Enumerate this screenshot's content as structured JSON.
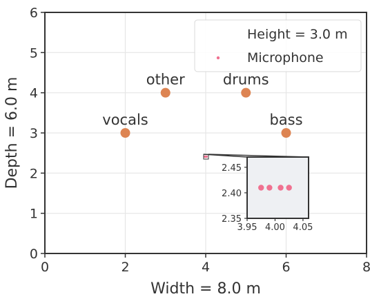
{
  "chart_data": {
    "type": "scatter",
    "title": "",
    "xlabel": "Width = 8.0 m",
    "ylabel": "Depth = 6.0 m",
    "xlim": [
      0,
      8
    ],
    "ylim": [
      0,
      6
    ],
    "xticks": [
      "0",
      "2",
      "4",
      "6",
      "8"
    ],
    "yticks": [
      "0",
      "1",
      "2",
      "3",
      "4",
      "5",
      "6"
    ],
    "grid": true,
    "legend": {
      "position": "upper-right",
      "entries": [
        "Height = 3.0 m",
        "Microphone"
      ]
    },
    "sources": [
      {
        "label": "vocals",
        "x": 2,
        "y": 3
      },
      {
        "label": "other",
        "x": 3,
        "y": 4
      },
      {
        "label": "drums",
        "x": 5,
        "y": 4
      },
      {
        "label": "bass",
        "x": 6,
        "y": 3
      }
    ],
    "source_color": "#dd8452",
    "microphones": {
      "name": "Microphone",
      "color": "#f07190",
      "x": [
        3.975,
        3.99,
        4.01,
        4.025
      ],
      "y": [
        2.41,
        2.41,
        2.41,
        2.41
      ]
    },
    "inset": {
      "xlim": [
        3.95,
        4.06
      ],
      "ylim": [
        2.35,
        2.47
      ],
      "xticks": [
        "3.95",
        "4.00",
        "4.05"
      ],
      "yticks": [
        "2.35",
        "2.40",
        "2.45"
      ],
      "background": "#eef0f3"
    }
  }
}
